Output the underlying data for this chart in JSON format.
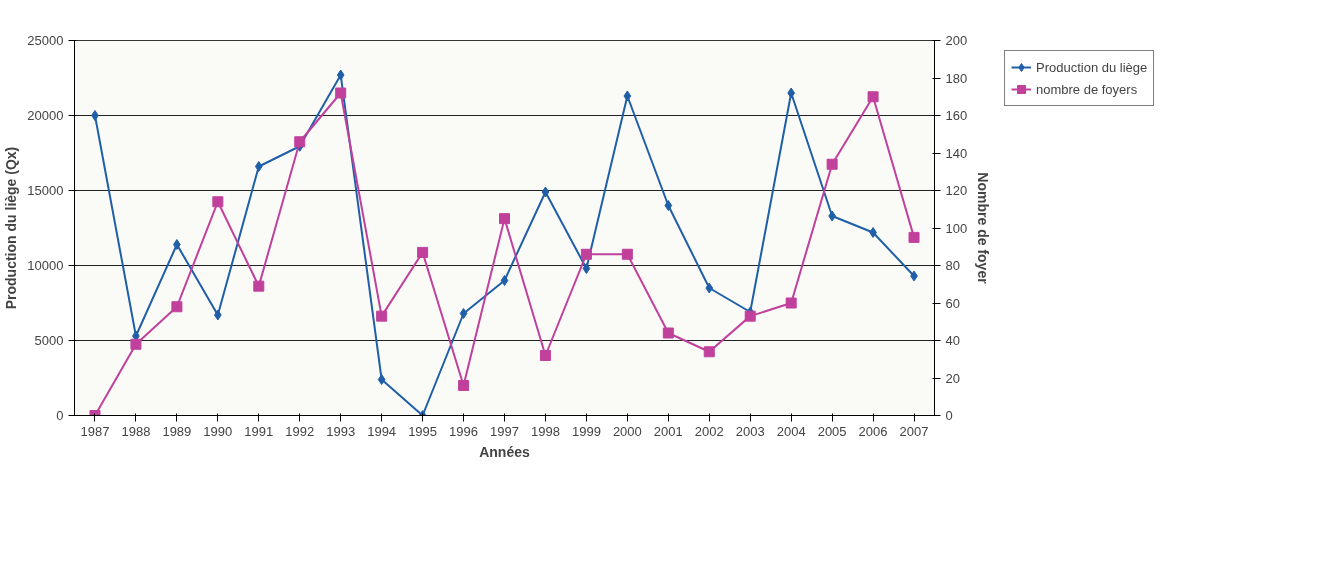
{
  "chart_data": {
    "type": "line",
    "categories": [
      "1987",
      "1988",
      "1989",
      "1990",
      "1991",
      "1992",
      "1993",
      "1994",
      "1995",
      "1996",
      "1997",
      "1998",
      "1999",
      "2000",
      "2001",
      "2002",
      "2003",
      "2004",
      "2005",
      "2006",
      "2007"
    ],
    "series": [
      {
        "name": "Production du liège",
        "color": "#1f5fa8",
        "marker": "diamond",
        "values": [
          20000,
          5300,
          11400,
          6700,
          16600,
          17950,
          22700,
          2400,
          0,
          6800,
          9000,
          14900,
          9800,
          21300,
          14000,
          8500,
          6900,
          21500,
          13300,
          12200,
          9300
        ]
      },
      {
        "name": "nombre de foyers",
        "color": "#c0409c",
        "marker": "square",
        "axis": "y2",
        "values": [
          0,
          38,
          58,
          114,
          69,
          146,
          172,
          53,
          87,
          16,
          105,
          32,
          86,
          86,
          44,
          34,
          53,
          60,
          134,
          170,
          95
        ]
      }
    ],
    "xlabel": "Années",
    "ylabel": "Production du liège (Qx)",
    "y2label": "Nombre de foyer",
    "ylim": [
      0,
      25000
    ],
    "yticks": [
      0,
      5000,
      10000,
      15000,
      20000,
      25000
    ],
    "y2lim": [
      0,
      200
    ],
    "y2ticks": [
      0,
      20,
      40,
      60,
      80,
      100,
      120,
      140,
      160,
      180,
      200
    ],
    "grid": "y",
    "legend": "top right"
  }
}
